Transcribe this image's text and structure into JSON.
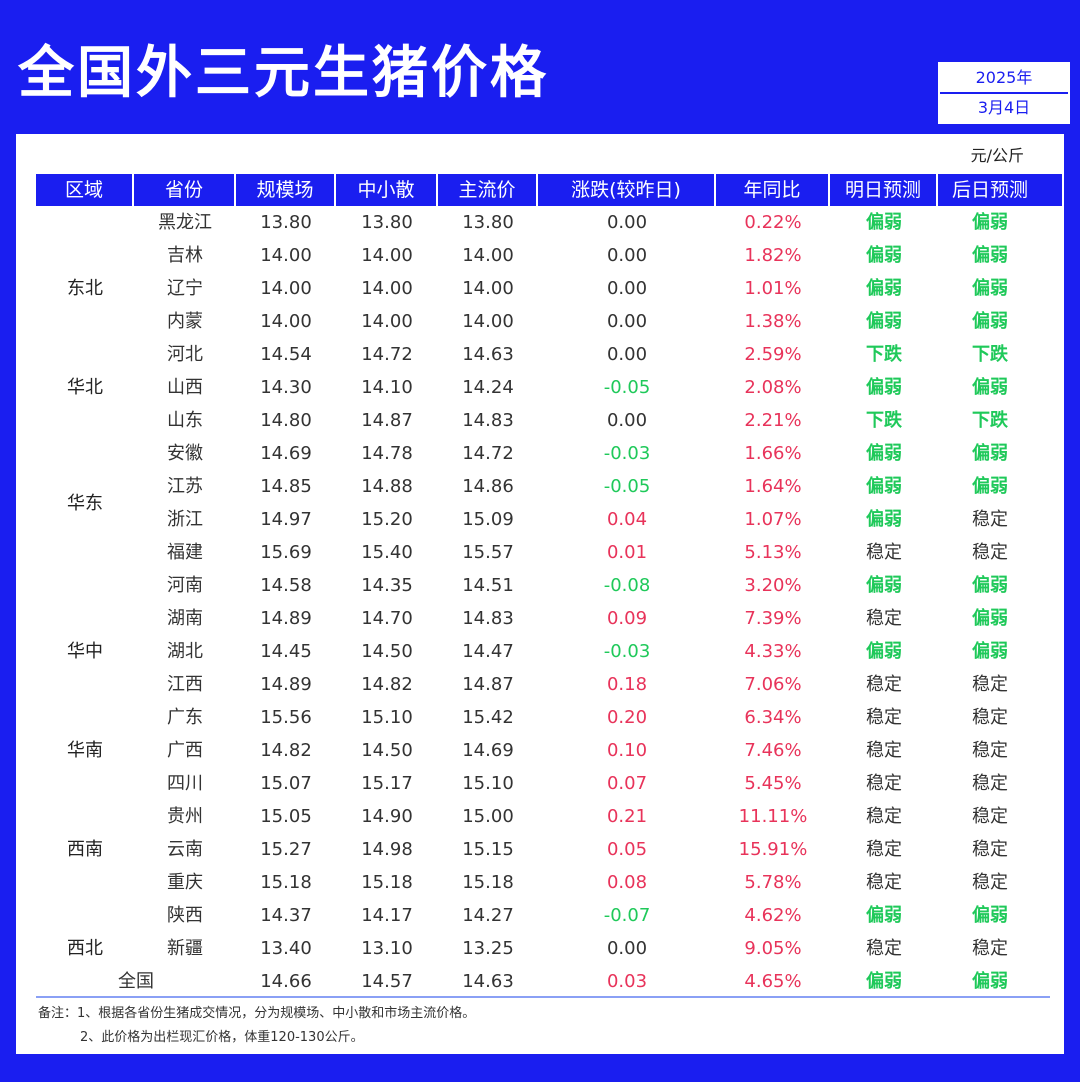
{
  "title": "全国外三元生猪价格",
  "date": {
    "year": "2025年",
    "day": "3月4日"
  },
  "unit": "元/公斤",
  "headers": [
    "区域",
    "省份",
    "规模场",
    "中小散",
    "主流价",
    "涨跌(较昨日)",
    "年同比",
    "明日预测",
    "后日预测"
  ],
  "regions": [
    {
      "name": "东北",
      "center_row": 2
    },
    {
      "name": "华北",
      "center_row": 5
    },
    {
      "name": "华东",
      "center_row": 8.5
    },
    {
      "name": "华中",
      "center_row": 13
    },
    {
      "name": "华南",
      "center_row": 16
    },
    {
      "name": "西南",
      "center_row": 19
    },
    {
      "name": "西北",
      "center_row": 22
    }
  ],
  "rows": [
    {
      "province": "黑龙江",
      "large": "13.80",
      "small": "13.80",
      "main": "13.80",
      "change": "0.00",
      "change_type": "zero",
      "yoy": "0.22%",
      "tomorrow": "偏弱",
      "tomorrow_type": "weak",
      "after": "偏弱",
      "after_type": "weak"
    },
    {
      "province": "吉林",
      "large": "14.00",
      "small": "14.00",
      "main": "14.00",
      "change": "0.00",
      "change_type": "zero",
      "yoy": "1.82%",
      "tomorrow": "偏弱",
      "tomorrow_type": "weak",
      "after": "偏弱",
      "after_type": "weak"
    },
    {
      "province": "辽宁",
      "large": "14.00",
      "small": "14.00",
      "main": "14.00",
      "change": "0.00",
      "change_type": "zero",
      "yoy": "1.01%",
      "tomorrow": "偏弱",
      "tomorrow_type": "weak",
      "after": "偏弱",
      "after_type": "weak"
    },
    {
      "province": "内蒙",
      "large": "14.00",
      "small": "14.00",
      "main": "14.00",
      "change": "0.00",
      "change_type": "zero",
      "yoy": "1.38%",
      "tomorrow": "偏弱",
      "tomorrow_type": "weak",
      "after": "偏弱",
      "after_type": "weak"
    },
    {
      "province": "河北",
      "large": "14.54",
      "small": "14.72",
      "main": "14.63",
      "change": "0.00",
      "change_type": "zero",
      "yoy": "2.59%",
      "tomorrow": "下跌",
      "tomorrow_type": "weak",
      "after": "下跌",
      "after_type": "weak"
    },
    {
      "province": "山西",
      "large": "14.30",
      "small": "14.10",
      "main": "14.24",
      "change": "-0.05",
      "change_type": "neg",
      "yoy": "2.08%",
      "tomorrow": "偏弱",
      "tomorrow_type": "weak",
      "after": "偏弱",
      "after_type": "weak"
    },
    {
      "province": "山东",
      "large": "14.80",
      "small": "14.87",
      "main": "14.83",
      "change": "0.00",
      "change_type": "zero",
      "yoy": "2.21%",
      "tomorrow": "下跌",
      "tomorrow_type": "weak",
      "after": "下跌",
      "after_type": "weak"
    },
    {
      "province": "安徽",
      "large": "14.69",
      "small": "14.78",
      "main": "14.72",
      "change": "-0.03",
      "change_type": "neg",
      "yoy": "1.66%",
      "tomorrow": "偏弱",
      "tomorrow_type": "weak",
      "after": "偏弱",
      "after_type": "weak"
    },
    {
      "province": "江苏",
      "large": "14.85",
      "small": "14.88",
      "main": "14.86",
      "change": "-0.05",
      "change_type": "neg",
      "yoy": "1.64%",
      "tomorrow": "偏弱",
      "tomorrow_type": "weak",
      "after": "偏弱",
      "after_type": "weak"
    },
    {
      "province": "浙江",
      "large": "14.97",
      "small": "15.20",
      "main": "15.09",
      "change": "0.04",
      "change_type": "pos",
      "yoy": "1.07%",
      "tomorrow": "偏弱",
      "tomorrow_type": "weak",
      "after": "稳定",
      "after_type": "stable"
    },
    {
      "province": "福建",
      "large": "15.69",
      "small": "15.40",
      "main": "15.57",
      "change": "0.01",
      "change_type": "pos",
      "yoy": "5.13%",
      "tomorrow": "稳定",
      "tomorrow_type": "stable",
      "after": "稳定",
      "after_type": "stable"
    },
    {
      "province": "河南",
      "large": "14.58",
      "small": "14.35",
      "main": "14.51",
      "change": "-0.08",
      "change_type": "neg",
      "yoy": "3.20%",
      "tomorrow": "偏弱",
      "tomorrow_type": "weak",
      "after": "偏弱",
      "after_type": "weak"
    },
    {
      "province": "湖南",
      "large": "14.89",
      "small": "14.70",
      "main": "14.83",
      "change": "0.09",
      "change_type": "pos",
      "yoy": "7.39%",
      "tomorrow": "稳定",
      "tomorrow_type": "stable",
      "after": "偏弱",
      "after_type": "weak"
    },
    {
      "province": "湖北",
      "large": "14.45",
      "small": "14.50",
      "main": "14.47",
      "change": "-0.03",
      "change_type": "neg",
      "yoy": "4.33%",
      "tomorrow": "偏弱",
      "tomorrow_type": "weak",
      "after": "偏弱",
      "after_type": "weak"
    },
    {
      "province": "江西",
      "large": "14.89",
      "small": "14.82",
      "main": "14.87",
      "change": "0.18",
      "change_type": "pos",
      "yoy": "7.06%",
      "tomorrow": "稳定",
      "tomorrow_type": "stable",
      "after": "稳定",
      "after_type": "stable"
    },
    {
      "province": "广东",
      "large": "15.56",
      "small": "15.10",
      "main": "15.42",
      "change": "0.20",
      "change_type": "pos",
      "yoy": "6.34%",
      "tomorrow": "稳定",
      "tomorrow_type": "stable",
      "after": "稳定",
      "after_type": "stable"
    },
    {
      "province": "广西",
      "large": "14.82",
      "small": "14.50",
      "main": "14.69",
      "change": "0.10",
      "change_type": "pos",
      "yoy": "7.46%",
      "tomorrow": "稳定",
      "tomorrow_type": "stable",
      "after": "稳定",
      "after_type": "stable"
    },
    {
      "province": "四川",
      "large": "15.07",
      "small": "15.17",
      "main": "15.10",
      "change": "0.07",
      "change_type": "pos",
      "yoy": "5.45%",
      "tomorrow": "稳定",
      "tomorrow_type": "stable",
      "after": "稳定",
      "after_type": "stable"
    },
    {
      "province": "贵州",
      "large": "15.05",
      "small": "14.90",
      "main": "15.00",
      "change": "0.21",
      "change_type": "pos",
      "yoy": "11.11%",
      "tomorrow": "稳定",
      "tomorrow_type": "stable",
      "after": "稳定",
      "after_type": "stable"
    },
    {
      "province": "云南",
      "large": "15.27",
      "small": "14.98",
      "main": "15.15",
      "change": "0.05",
      "change_type": "pos",
      "yoy": "15.91%",
      "tomorrow": "稳定",
      "tomorrow_type": "stable",
      "after": "稳定",
      "after_type": "stable"
    },
    {
      "province": "重庆",
      "large": "15.18",
      "small": "15.18",
      "main": "15.18",
      "change": "0.08",
      "change_type": "pos",
      "yoy": "5.78%",
      "tomorrow": "稳定",
      "tomorrow_type": "stable",
      "after": "稳定",
      "after_type": "stable"
    },
    {
      "province": "陕西",
      "large": "14.37",
      "small": "14.17",
      "main": "14.27",
      "change": "-0.07",
      "change_type": "neg",
      "yoy": "4.62%",
      "tomorrow": "偏弱",
      "tomorrow_type": "weak",
      "after": "偏弱",
      "after_type": "weak"
    },
    {
      "province": "新疆",
      "large": "13.40",
      "small": "13.10",
      "main": "13.25",
      "change": "0.00",
      "change_type": "zero",
      "yoy": "9.05%",
      "tomorrow": "稳定",
      "tomorrow_type": "stable",
      "after": "稳定",
      "after_type": "stable"
    }
  ],
  "total": {
    "label": "全国",
    "large": "14.66",
    "small": "14.57",
    "main": "14.63",
    "change": "0.03",
    "change_type": "pos",
    "yoy": "4.65%",
    "tomorrow": "偏弱",
    "tomorrow_type": "weak",
    "after": "偏弱",
    "after_type": "weak"
  },
  "notes": [
    "备注：1、根据各省份生猪成交情况，分为规模场、中小散和市场主流价格。",
    "2、此价格为出栏现汇价格，体重120-130公斤。"
  ],
  "colors": {
    "brand": "#1a1ef0",
    "down": "#1fc95a",
    "up": "#e8335a"
  }
}
